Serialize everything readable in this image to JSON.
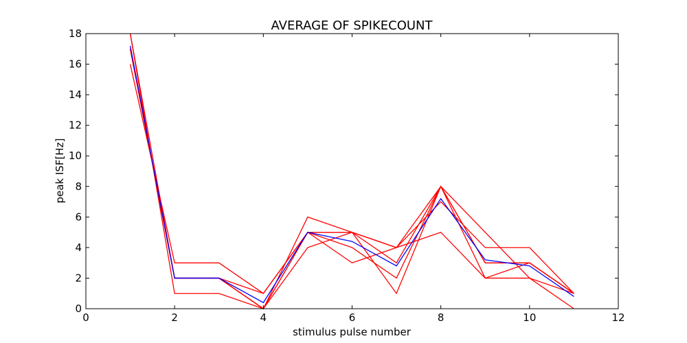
{
  "chart_data": {
    "type": "line",
    "title": "AVERAGE OF SPIKECOUNT",
    "xlabel": "stimulus pulse number",
    "ylabel": "peak ISF[Hz]",
    "xlim": [
      0,
      12
    ],
    "ylim": [
      0,
      18
    ],
    "xticks": [
      0,
      2,
      4,
      6,
      8,
      10,
      12
    ],
    "yticks": [
      0,
      2,
      4,
      6,
      8,
      10,
      12,
      14,
      16,
      18
    ],
    "grid": false,
    "x": [
      1,
      2,
      3,
      4,
      5,
      6,
      7,
      8,
      9,
      10,
      11
    ],
    "series": [
      {
        "color": "#ff0000",
        "values": [
          18,
          2,
          2,
          0,
          5,
          5,
          3,
          8,
          2,
          3,
          1
        ]
      },
      {
        "color": "#ff0000",
        "values": [
          16,
          3,
          3,
          1,
          5,
          5,
          4,
          8,
          5,
          2,
          1
        ]
      },
      {
        "color": "#ff0000",
        "values": [
          17,
          2,
          2,
          0,
          6,
          5,
          1,
          8,
          3,
          3,
          1
        ]
      },
      {
        "color": "#ff0000",
        "values": [
          18,
          1,
          1,
          0,
          4,
          5,
          4,
          5,
          2,
          2,
          0
        ]
      },
      {
        "color": "#ff0000",
        "values": [
          17,
          2,
          2,
          1,
          5,
          3,
          4,
          7,
          4,
          4,
          1
        ]
      },
      {
        "color": "#ff0000",
        "values": [
          17,
          2,
          2,
          0,
          5,
          4,
          2,
          8,
          3,
          3,
          1
        ]
      },
      {
        "color": "#0000ff",
        "values": [
          17.2,
          2,
          2,
          0.4,
          5,
          4.4,
          2.8,
          7.2,
          3.2,
          2.8,
          0.8
        ]
      }
    ]
  }
}
